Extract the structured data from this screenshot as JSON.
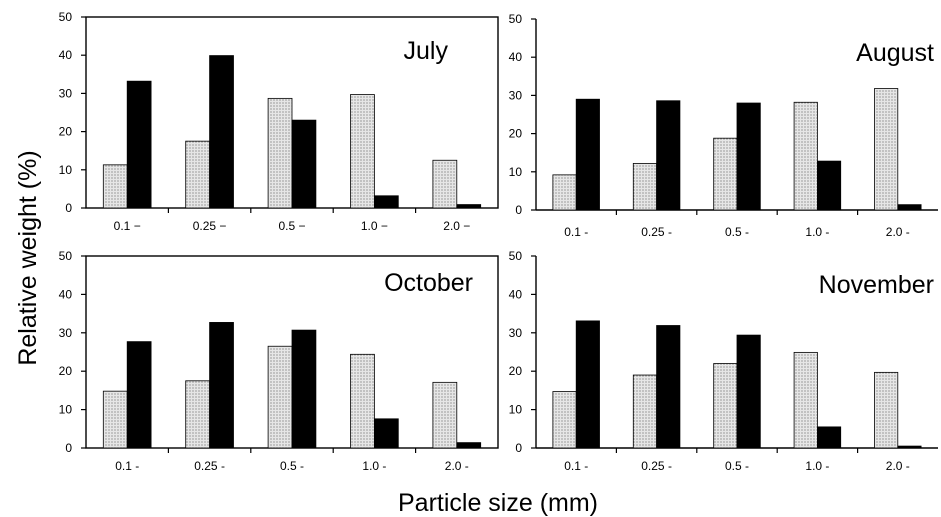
{
  "figure": {
    "ylabel": "Relative weight (%)",
    "xlabel": "Particle size (mm)"
  },
  "chart_data": [
    {
      "type": "bar",
      "title": "July",
      "categories": [
        "0.1 −",
        "0.25 −",
        "0.5 −",
        "1.0 −",
        "2.0 −"
      ],
      "series": [
        {
          "values": [
            11.3,
            17.5,
            28.7,
            29.7,
            12.5
          ]
        },
        {
          "values": [
            33.2,
            39.9,
            23.0,
            3.2,
            0.9
          ]
        }
      ],
      "yticks": [
        "0",
        "10",
        "20",
        "30",
        "40",
        "50"
      ],
      "ylim": [
        0,
        50
      ],
      "xlabel": "",
      "ylabel": ""
    },
    {
      "type": "bar",
      "title": "August",
      "categories": [
        "0.1 -",
        "0.25 -",
        "0.5 -",
        "1.0 -",
        "2.0 -"
      ],
      "series": [
        {
          "values": [
            9.2,
            12.2,
            18.8,
            28.2,
            31.8
          ]
        },
        {
          "values": [
            29.0,
            28.6,
            28.0,
            12.8,
            1.4
          ]
        }
      ],
      "yticks": [
        "0",
        "10",
        "20",
        "30",
        "40",
        "50"
      ],
      "ylim": [
        0,
        50
      ],
      "xlabel": "",
      "ylabel": ""
    },
    {
      "type": "bar",
      "title": "October",
      "categories": [
        "0.1 -",
        "0.25 -",
        "0.5 -",
        "1.0 -",
        "2.0 -"
      ],
      "series": [
        {
          "values": [
            14.8,
            17.5,
            26.5,
            24.4,
            17.1
          ]
        },
        {
          "values": [
            27.7,
            32.7,
            30.7,
            7.6,
            1.4
          ]
        }
      ],
      "yticks": [
        "0",
        "10",
        "20",
        "30",
        "40",
        "50"
      ],
      "ylim": [
        0,
        50
      ],
      "xlabel": "",
      "ylabel": ""
    },
    {
      "type": "bar",
      "title": "November",
      "categories": [
        "0.1 -",
        "0.25 -",
        "0.5 -",
        "1.0 -",
        "2.0 -"
      ],
      "series": [
        {
          "values": [
            14.7,
            19.0,
            22.0,
            24.9,
            19.7
          ]
        },
        {
          "values": [
            33.1,
            31.9,
            29.4,
            5.5,
            0.5
          ]
        }
      ],
      "yticks": [
        "0",
        "10",
        "20",
        "30",
        "40",
        "50"
      ],
      "ylim": [
        0,
        50
      ],
      "xlabel": "",
      "ylabel": ""
    }
  ],
  "style": {
    "dotted_fill": "#e6e6e6",
    "dot_color": "#6a6a6a",
    "solid_fill": "#000000",
    "axis_color": "#000000"
  }
}
